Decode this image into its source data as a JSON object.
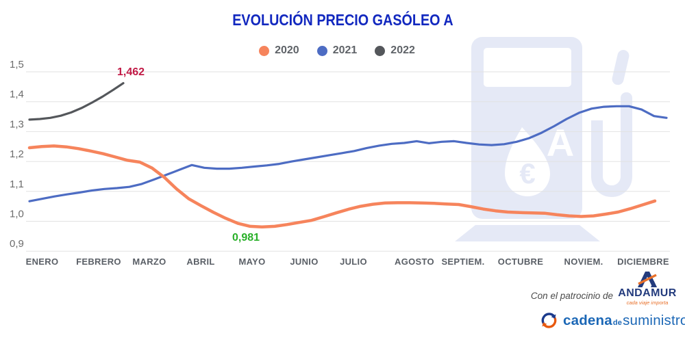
{
  "title": "EVOLUCIÓN PRECIO GASÓLEO A",
  "chart_data": {
    "type": "line",
    "title": "EVOLUCIÓN PRECIO GASÓLEO A",
    "x_unit": "weeks of the year",
    "categories": [
      "ENERO",
      "FEBRERO",
      "MARZO",
      "ABRIL",
      "MAYO",
      "JUNIO",
      "JULIO",
      "AGOSTO",
      "SEPTIEM.",
      "OCTUBRE",
      "NOVIEM.",
      "DICIEMBRE"
    ],
    "ylim": [
      0.9,
      1.5
    ],
    "yticks": [
      {
        "label": "1,5",
        "value": 1.5
      },
      {
        "label": "1,4",
        "value": 1.4
      },
      {
        "label": "1,3",
        "value": 1.3
      },
      {
        "label": "1,2",
        "value": 1.2
      },
      {
        "label": "1,1",
        "value": 1.1
      },
      {
        "label": "1,0",
        "value": 1.0
      },
      {
        "label": "0,9",
        "value": 0.9
      }
    ],
    "grid": "horizontal",
    "legend_position": "top-center",
    "series": [
      {
        "name": "2020",
        "color": "#f6845c",
        "values": [
          1.246,
          1.25,
          1.252,
          1.249,
          1.243,
          1.235,
          1.226,
          1.215,
          1.204,
          1.198,
          1.178,
          1.147,
          1.108,
          1.075,
          1.052,
          1.03,
          1.01,
          0.993,
          0.983,
          0.981,
          0.983,
          0.989,
          0.996,
          1.003,
          1.015,
          1.028,
          1.04,
          1.05,
          1.057,
          1.061,
          1.062,
          1.062,
          1.061,
          1.06,
          1.058,
          1.056,
          1.049,
          1.041,
          1.035,
          1.031,
          1.029,
          1.028,
          1.027,
          1.022,
          1.018,
          1.016,
          1.018,
          1.024,
          1.031,
          1.042,
          1.055,
          1.068
        ]
      },
      {
        "name": "2021",
        "color": "#4d6cc3",
        "values": [
          1.067,
          1.075,
          1.083,
          1.09,
          1.096,
          1.103,
          1.108,
          1.111,
          1.115,
          1.125,
          1.14,
          1.156,
          1.172,
          1.188,
          1.179,
          1.176,
          1.176,
          1.179,
          1.183,
          1.187,
          1.192,
          1.2,
          1.207,
          1.214,
          1.221,
          1.228,
          1.235,
          1.245,
          1.253,
          1.259,
          1.262,
          1.268,
          1.261,
          1.266,
          1.268,
          1.262,
          1.257,
          1.255,
          1.258,
          1.266,
          1.278,
          1.296,
          1.318,
          1.342,
          1.363,
          1.377,
          1.383,
          1.385,
          1.385,
          1.374,
          1.352,
          1.346
        ]
      },
      {
        "name": "2022",
        "color": "#54575b",
        "values": [
          1.34,
          1.342,
          1.346,
          1.353,
          1.364,
          1.379,
          1.397,
          1.417,
          1.439,
          1.462
        ]
      }
    ],
    "annotations": [
      {
        "text": "1,462",
        "value": 1.462,
        "series": "2022",
        "position": "end",
        "color": "#c11945"
      },
      {
        "text": "0,981",
        "value": 0.981,
        "series": "2020",
        "position": "min",
        "color": "#29b029"
      }
    ]
  },
  "sponsor": {
    "patrocinio_label": "Con el patrocinio de",
    "andamur_name": "ANDAMUR",
    "andamur_tagline": "cada viaje importa",
    "cadena_word1": "cadena",
    "cadena_word2": "de",
    "cadena_word3": "suministro"
  },
  "colors": {
    "title_blue": "#1228bf",
    "series_2020": "#f6845c",
    "series_2021": "#4d6cc3",
    "series_2022": "#54575b",
    "annotation_max": "#c11945",
    "annotation_min": "#29b029",
    "watermark": "#e5e9f6",
    "gridline": "#e2e2e2",
    "andamur_navy": "#233b7d",
    "andamur_orange": "#e8702a",
    "cadena_blue": "#1b67b6",
    "cadena_orange": "#e8590f"
  }
}
